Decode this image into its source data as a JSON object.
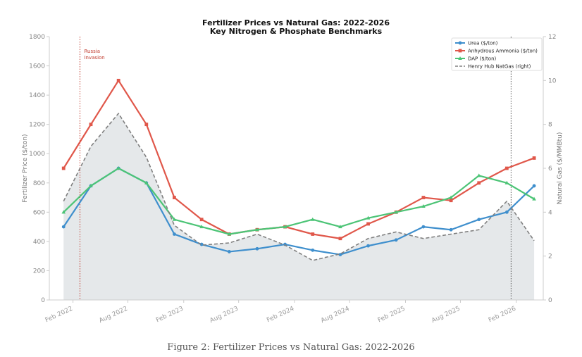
{
  "chart_data": {
    "type": "line",
    "title": "Fertilizer Prices vs Natural Gas: 2022-2026",
    "subtitle": "Key Nitrogen & Phosphate Benchmarks",
    "ylabel": "Fertilizer Price ($/ton)",
    "y2label": "Natural Gas ($/MMBtu)",
    "ylim": [
      0,
      1800
    ],
    "y2lim": [
      0,
      12
    ],
    "yticks": [
      0,
      200,
      400,
      600,
      800,
      1000,
      1200,
      1400,
      1600,
      1800
    ],
    "y2ticks": [
      0,
      2,
      4,
      6,
      8,
      10,
      12
    ],
    "xlim": [
      "2021-11-15",
      "2026-05-01"
    ],
    "xticks": [
      {
        "date": "2022-02-01",
        "label": "Feb 2022"
      },
      {
        "date": "2022-08-01",
        "label": "Aug 2022"
      },
      {
        "date": "2023-02-01",
        "label": "Feb 2023"
      },
      {
        "date": "2023-08-01",
        "label": "Aug 2023"
      },
      {
        "date": "2024-02-01",
        "label": "Feb 2024"
      },
      {
        "date": "2024-08-01",
        "label": "Aug 2024"
      },
      {
        "date": "2025-02-01",
        "label": "Feb 2025"
      },
      {
        "date": "2025-08-01",
        "label": "Aug 2025"
      },
      {
        "date": "2026-02-01",
        "label": "Feb 2026"
      }
    ],
    "x": [
      "2022-01-01",
      "2022-04-01",
      "2022-07-01",
      "2022-10-01",
      "2023-01-01",
      "2023-04-01",
      "2023-07-01",
      "2023-10-01",
      "2024-01-01",
      "2024-04-01",
      "2024-07-01",
      "2024-10-01",
      "2025-01-01",
      "2025-04-01",
      "2025-07-01",
      "2025-10-01",
      "2026-01-01",
      "2026-04-01"
    ],
    "series": [
      {
        "name": "Urea ($/ton)",
        "color": "#3f8fcd",
        "marker": "circle",
        "axis": "left",
        "values": [
          500,
          780,
          900,
          800,
          450,
          380,
          330,
          350,
          380,
          340,
          310,
          370,
          410,
          500,
          480,
          550,
          600,
          780
        ]
      },
      {
        "name": "Anhydrous Ammonia ($/ton)",
        "color": "#e0574a",
        "marker": "square",
        "axis": "left",
        "values": [
          900,
          1200,
          1500,
          1200,
          700,
          550,
          450,
          480,
          500,
          450,
          420,
          520,
          600,
          700,
          680,
          800,
          900,
          970
        ]
      },
      {
        "name": "DAP ($/ton)",
        "color": "#4cc476",
        "marker": "triangle",
        "axis": "left",
        "values": [
          600,
          780,
          900,
          800,
          550,
          500,
          450,
          480,
          500,
          550,
          500,
          560,
          600,
          640,
          700,
          850,
          800,
          690
        ]
      },
      {
        "name": "Henry Hub NatGas (right)",
        "color": "#808080",
        "style": "dashed",
        "fill": "#e5e8ea",
        "axis": "right",
        "values": [
          4.5,
          7.0,
          8.5,
          6.5,
          3.4,
          2.5,
          2.6,
          3.0,
          2.5,
          1.8,
          2.1,
          2.8,
          3.1,
          2.8,
          3.0,
          3.2,
          4.5,
          2.7
        ]
      }
    ],
    "annotations": [
      {
        "date": "2022-02-24",
        "label": "Russia\nInvasion",
        "color": "#c0392b"
      },
      {
        "date": "2026-01-15",
        "label": "",
        "color": "#555555"
      }
    ],
    "legend": "top-right",
    "grid": false
  },
  "caption": "Figure 2: Fertilizer Prices vs Natural Gas: 2022-2026"
}
